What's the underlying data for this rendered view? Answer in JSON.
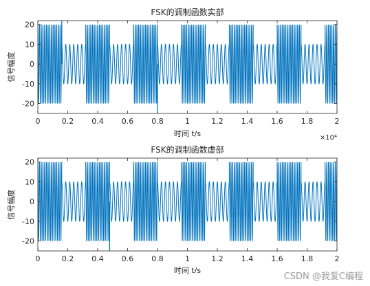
{
  "chart_data": [
    {
      "type": "line",
      "title": "FSK的调制函数实部",
      "xlabel": "时间 t/s",
      "ylabel": "信号幅度",
      "xlim": [
        0,
        2
      ],
      "ylim": [
        -25,
        22
      ],
      "xticks": [
        "0",
        "0.2",
        "0.4",
        "0.6",
        "0.8",
        "1",
        "1.2",
        "1.4",
        "1.6",
        "1.8",
        "2"
      ],
      "xtick_values": [
        0,
        0.2,
        0.4,
        0.6,
        0.8,
        1,
        1.2,
        1.4,
        1.6,
        1.8,
        2
      ],
      "yticks": [
        "20",
        "10",
        "0",
        "-10",
        "-20"
      ],
      "ytick_values": [
        20,
        10,
        0,
        -10,
        -20
      ],
      "x_exponent": "×10⁴",
      "grid": false,
      "series": [
        {
          "color": "#0072BD",
          "segments": [
            {
              "x0": 0.0,
              "x1": 0.16,
              "amplitude": 20,
              "cycles": 14
            },
            {
              "x0": 0.16,
              "x1": 0.32,
              "amplitude": 10,
              "cycles": 6
            },
            {
              "x0": 0.32,
              "x1": 0.48,
              "amplitude": 20,
              "cycles": 14
            },
            {
              "x0": 0.48,
              "x1": 0.64,
              "amplitude": 10,
              "cycles": 6
            },
            {
              "x0": 0.64,
              "x1": 0.8,
              "amplitude": 20,
              "cycles": 14
            },
            {
              "x0": 0.8,
              "x1": 0.96,
              "amplitude": 10,
              "cycles": 6
            },
            {
              "x0": 0.96,
              "x1": 1.12,
              "amplitude": 20,
              "cycles": 14
            },
            {
              "x0": 1.12,
              "x1": 1.28,
              "amplitude": 10,
              "cycles": 6
            },
            {
              "x0": 1.28,
              "x1": 1.44,
              "amplitude": 20,
              "cycles": 14
            },
            {
              "x0": 1.44,
              "x1": 1.6,
              "amplitude": 10,
              "cycles": 6
            },
            {
              "x0": 1.6,
              "x1": 1.76,
              "amplitude": 20,
              "cycles": 14
            },
            {
              "x0": 1.76,
              "x1": 1.92,
              "amplitude": 10,
              "cycles": 6
            },
            {
              "x0": 1.92,
              "x1": 2.0,
              "amplitude": 20,
              "cycles": 7
            }
          ],
          "spikes": [
            {
              "x": 0.16,
              "y": 22
            },
            {
              "x": 0.8,
              "y": -25
            }
          ]
        }
      ]
    },
    {
      "type": "line",
      "title": "FSK的调制函数虚部",
      "xlabel": "时间 t/s",
      "ylabel": "信号幅度",
      "xlim": [
        0,
        2
      ],
      "ylim": [
        -25,
        22
      ],
      "xticks": [
        "0",
        "0.2",
        "0.4",
        "0.6",
        "0.8",
        "1",
        "1.2",
        "1.4",
        "1.6",
        "1.8",
        "2"
      ],
      "xtick_values": [
        0,
        0.2,
        0.4,
        0.6,
        0.8,
        1,
        1.2,
        1.4,
        1.6,
        1.8,
        2
      ],
      "yticks": [
        "20",
        "10",
        "0",
        "-10",
        "-20"
      ],
      "ytick_values": [
        20,
        10,
        0,
        -10,
        -20
      ],
      "grid": false,
      "series": [
        {
          "color": "#0072BD",
          "segments": [
            {
              "x0": 0.0,
              "x1": 0.16,
              "amplitude": 20,
              "cycles": 14
            },
            {
              "x0": 0.16,
              "x1": 0.32,
              "amplitude": 10,
              "cycles": 6
            },
            {
              "x0": 0.32,
              "x1": 0.48,
              "amplitude": 20,
              "cycles": 14
            },
            {
              "x0": 0.48,
              "x1": 0.64,
              "amplitude": 10,
              "cycles": 6
            },
            {
              "x0": 0.64,
              "x1": 0.8,
              "amplitude": 20,
              "cycles": 14
            },
            {
              "x0": 0.8,
              "x1": 0.96,
              "amplitude": 10,
              "cycles": 6
            },
            {
              "x0": 0.96,
              "x1": 1.12,
              "amplitude": 20,
              "cycles": 14
            },
            {
              "x0": 1.12,
              "x1": 1.28,
              "amplitude": 10,
              "cycles": 6
            },
            {
              "x0": 1.28,
              "x1": 1.44,
              "amplitude": 20,
              "cycles": 14
            },
            {
              "x0": 1.44,
              "x1": 1.6,
              "amplitude": 10,
              "cycles": 6
            },
            {
              "x0": 1.6,
              "x1": 1.76,
              "amplitude": 20,
              "cycles": 14
            },
            {
              "x0": 1.76,
              "x1": 1.92,
              "amplitude": 10,
              "cycles": 6
            },
            {
              "x0": 1.92,
              "x1": 2.0,
              "amplitude": 20,
              "cycles": 7
            }
          ],
          "spikes": [
            {
              "x": 0.48,
              "y": -25
            }
          ]
        }
      ]
    }
  ],
  "watermark": "CSDN @我爱C编程"
}
